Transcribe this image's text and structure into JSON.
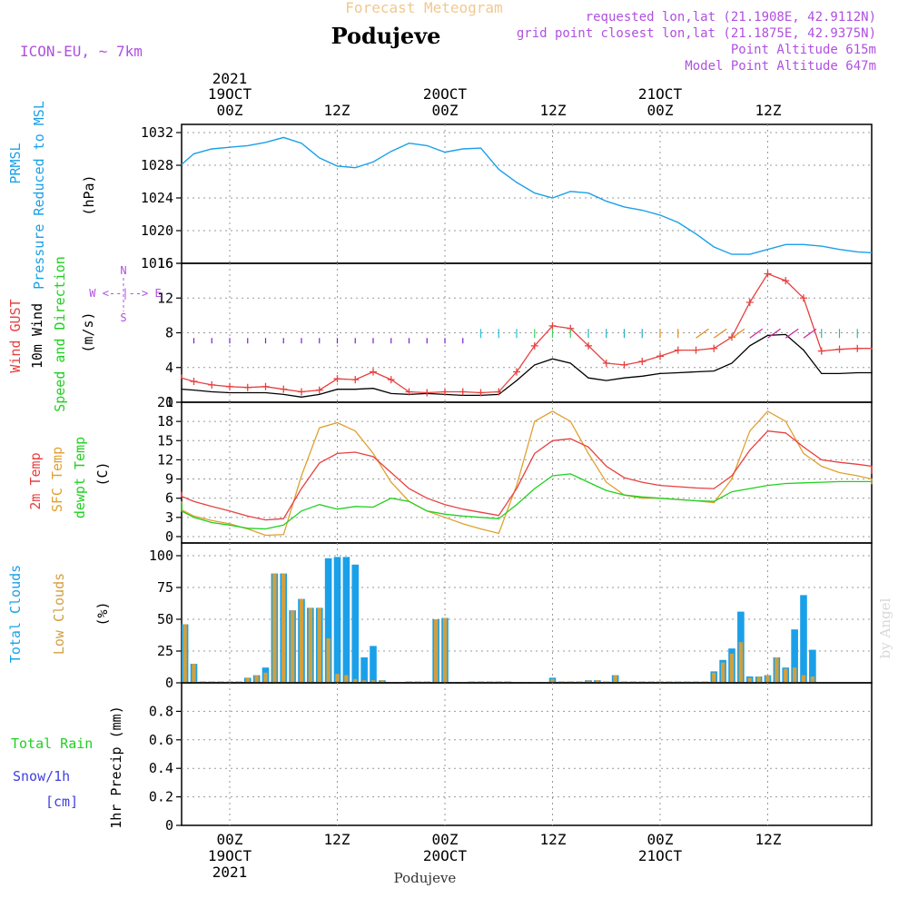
{
  "header": {
    "super_title": "Forecast Meteogram",
    "location": "Podujeve",
    "model": "ICON-EU, ~ 7km",
    "requested": "requested lon,lat (21.1908E, 42.9112N)",
    "grid_point": "grid point closest lon,lat (21.1875E, 42.9375N)",
    "point_altitude": "Point Altitude 615m",
    "model_altitude": "Model Point Altitude 647m"
  },
  "time_axis": {
    "top_year": "2021",
    "top_dates": [
      "19OCT",
      "20OCT",
      "21OCT"
    ],
    "top_hours": [
      "00Z",
      "12Z",
      "00Z",
      "12Z",
      "00Z",
      "12Z"
    ],
    "bottom_hours": [
      "00Z",
      "12Z",
      "00Z",
      "12Z",
      "00Z",
      "12Z"
    ],
    "bottom_dates": [
      "19OCT",
      "20OCT",
      "21OCT"
    ],
    "bottom_year": "2021",
    "footer": "Podujeve",
    "watermark": "by Angel"
  },
  "colors": {
    "pressure": "#1aa0e8",
    "gust": "#e84040",
    "wind10m": "#000000",
    "temp2m": "#e84040",
    "sfc_temp": "#e0a030",
    "dewpoint": "#20d020",
    "total_clouds": "#1aa0e8",
    "low_clouds": "#d0a040",
    "rain": "#20d020",
    "snow": "#4040e0",
    "header_orange": "#f0c890",
    "header_purple": "#b050e0"
  },
  "panels": {
    "pressure": {
      "label1": "PRMSL",
      "label2": "Pressure Reduced to MSL",
      "unit": "(hPa)"
    },
    "wind": {
      "label_gust": "Wind GUST",
      "label_wind": "10m Wind",
      "label_dir": "Speed and Direction",
      "unit": "(m/s)",
      "compass_n": "N",
      "compass_s": "S",
      "compass_line": "W <--|--> E"
    },
    "temp": {
      "label_t2m": "2m Temp",
      "label_sfc": "SFC Temp",
      "label_dew": "dewpt Temp",
      "unit": "(C)"
    },
    "clouds": {
      "label_total": "Total Clouds",
      "label_low": "Low Clouds",
      "unit": "(%)"
    },
    "precip": {
      "label_rain": "Total  Rain",
      "label_snow": "Snow/1h",
      "label_snow_unit": "[cm]",
      "ylabel": "1hr Precip (mm)"
    }
  },
  "chart_data": [
    {
      "type": "line",
      "name_key": "pressure",
      "ylim": [
        1016,
        1033
      ],
      "yticks": [
        1016,
        1020,
        1024,
        1028,
        1032
      ],
      "x_hours": [
        -6,
        -4,
        -2,
        0,
        2,
        4,
        6,
        8,
        9,
        10,
        12,
        14,
        16,
        18,
        20,
        22,
        24,
        26,
        28,
        30,
        32,
        34,
        36,
        38,
        40,
        42,
        44,
        46,
        48,
        50,
        52,
        54,
        56,
        58,
        60,
        62,
        64,
        66,
        68,
        70,
        72
      ],
      "series": [
        {
          "values": [
            1028.1,
            1029.4,
            1030.0,
            1030.2,
            1030.4,
            1030.8,
            1031.4,
            1030.7,
            1029.8,
            1028.9,
            1027.9,
            1027.7,
            1028.4,
            1029.7,
            1030.7,
            1030.4,
            1029.6,
            1030.0,
            1030.1,
            1027.5,
            1025.9,
            1024.6,
            1024.0,
            1024.8,
            1024.6,
            1023.6,
            1022.9,
            1022.5,
            1021.9,
            1021.0,
            1019.6,
            1018.0,
            1017.1,
            1017.1,
            1017.7,
            1018.3,
            1018.3,
            1018.1,
            1017.7,
            1017.4,
            1017.3
          ]
        }
      ]
    },
    {
      "type": "line",
      "name_key": "wind",
      "ylim": [
        0,
        16
      ],
      "yticks": [
        0,
        4,
        8,
        12,
        16
      ],
      "x_hours": [
        -8,
        -6,
        -4,
        -2,
        0,
        2,
        4,
        6,
        8,
        10,
        12,
        14,
        16,
        18,
        20,
        22,
        24,
        26,
        28,
        30,
        32,
        34,
        36,
        38,
        40,
        42,
        44,
        46,
        48,
        50,
        52,
        54,
        56,
        58,
        60,
        62,
        64,
        66,
        68,
        70,
        72,
        74,
        76,
        78,
        80
      ],
      "series": [
        {
          "key": "gust",
          "values": [
            3.2,
            2.8,
            2.4,
            2.0,
            1.8,
            1.7,
            1.8,
            1.5,
            1.2,
            1.4,
            2.7,
            2.6,
            3.5,
            2.6,
            1.2,
            1.1,
            1.2,
            1.2,
            1.1,
            1.2,
            3.5,
            6.5,
            8.8,
            8.5,
            6.5,
            4.5,
            4.3,
            4.7,
            5.3,
            6.0,
            6.0,
            6.2,
            7.5,
            11.5,
            14.8,
            14.0,
            12.0,
            5.9,
            6.1,
            6.2,
            6.2,
            6.1,
            6.2,
            6.1,
            6.1
          ],
          "visible_count": 45
        },
        {
          "key": "wind10m",
          "values": [
            1.6,
            1.5,
            1.4,
            1.2,
            1.1,
            1.1,
            1.1,
            0.9,
            0.6,
            0.9,
            1.5,
            1.5,
            1.6,
            1.0,
            0.9,
            1.0,
            0.9,
            0.8,
            0.8,
            0.9,
            2.5,
            4.3,
            5.0,
            4.5,
            2.8,
            2.5,
            2.8,
            3.0,
            3.3,
            3.4,
            3.5,
            3.6,
            4.5,
            6.5,
            7.7,
            7.8,
            6.0,
            3.3,
            3.3,
            3.4,
            3.4,
            3.3,
            3.4,
            3.4,
            3.3
          ]
        }
      ]
    },
    {
      "type": "line",
      "name_key": "temp",
      "ylim": [
        -1,
        21
      ],
      "yticks": [
        0,
        3,
        6,
        9,
        12,
        15,
        18,
        21
      ],
      "x_hours": [
        -8,
        -6,
        -4,
        -2,
        0,
        2,
        4,
        6,
        8,
        10,
        12,
        14,
        16,
        18,
        20,
        22,
        24,
        26,
        28,
        30,
        32,
        34,
        36,
        38,
        40,
        42,
        44,
        46,
        48,
        50,
        52,
        54,
        56,
        58,
        60,
        62,
        64,
        66,
        68,
        70,
        72,
        74,
        76,
        78,
        80
      ],
      "series": [
        {
          "key": "temp2m",
          "values": [
            7.0,
            6.3,
            5.5,
            4.7,
            4.0,
            3.2,
            2.6,
            2.8,
            7.5,
            11.5,
            13.0,
            13.2,
            12.5,
            10.0,
            7.5,
            6.0,
            5.0,
            4.3,
            3.8,
            3.3,
            7.5,
            13.0,
            15.0,
            15.3,
            14.0,
            11.0,
            9.2,
            8.5,
            8.0,
            7.8,
            7.6,
            7.5,
            9.5,
            13.5,
            16.5,
            16.2,
            14.0,
            12.0,
            11.6,
            11.3,
            11.0,
            10.6,
            10.2,
            10.0,
            9.8
          ]
        },
        {
          "key": "sfc_temp",
          "values": [
            5.5,
            4.2,
            3.2,
            2.5,
            2.0,
            1.2,
            0.2,
            0.3,
            9.5,
            17.0,
            17.8,
            16.5,
            13.0,
            8.5,
            5.5,
            4.0,
            3.0,
            2.0,
            1.2,
            0.5,
            8.0,
            18.0,
            19.6,
            18.0,
            13.0,
            8.5,
            6.5,
            6.0,
            6.0,
            5.8,
            5.6,
            5.3,
            9.0,
            16.5,
            19.6,
            18.0,
            13.0,
            11.0,
            10.0,
            9.5,
            9.0,
            8.8,
            8.6,
            8.4,
            8.2
          ]
        },
        {
          "key": "dewpoint",
          "values": [
            5.2,
            4.0,
            3.0,
            2.2,
            1.8,
            1.3,
            1.2,
            1.8,
            4.0,
            5.0,
            4.3,
            4.7,
            4.6,
            6.0,
            5.5,
            4.0,
            3.5,
            3.2,
            3.0,
            2.8,
            5.0,
            7.5,
            9.5,
            9.8,
            8.5,
            7.2,
            6.5,
            6.2,
            6.0,
            5.8,
            5.6,
            5.5,
            7.0,
            7.5,
            8.0,
            8.3,
            8.4,
            8.5,
            8.6,
            8.6,
            8.6,
            8.7,
            8.7,
            8.7,
            8.7
          ]
        }
      ]
    },
    {
      "type": "bar",
      "name_key": "clouds",
      "ylim": [
        0,
        110
      ],
      "yticks": [
        0,
        25,
        50,
        75,
        100
      ],
      "x_hours": [
        -11,
        -10,
        -9,
        -8,
        -7,
        -6,
        -5,
        -4,
        -3,
        -2,
        -1,
        0,
        1,
        2,
        3,
        4,
        5,
        6,
        7,
        8,
        9,
        10,
        11,
        12,
        13,
        14,
        15,
        16,
        17,
        18,
        19,
        20,
        21,
        22,
        23,
        24,
        25,
        26,
        27,
        28,
        29,
        30,
        31,
        32,
        33,
        34,
        35,
        36,
        37,
        38,
        39,
        40,
        41,
        42,
        43,
        44,
        45,
        46,
        47,
        48,
        49,
        50,
        51,
        52,
        53,
        54,
        55,
        56,
        57,
        58,
        59,
        60,
        61,
        62,
        63,
        64,
        65
      ],
      "series": [
        {
          "key": "total_clouds",
          "values": [
            45,
            60,
            51,
            39,
            32,
            45,
            46,
            15,
            1,
            1,
            1,
            1,
            1,
            4,
            6,
            12,
            86,
            86,
            57,
            66,
            59,
            59,
            98,
            99,
            99,
            93,
            20,
            29,
            2,
            0,
            0,
            1,
            1,
            1,
            50,
            51,
            0,
            0,
            1,
            1,
            1,
            1,
            1,
            0,
            0,
            0,
            0,
            4,
            1,
            1,
            1,
            2,
            2,
            1,
            6,
            1,
            1,
            1,
            1,
            1,
            1,
            1,
            1,
            1,
            1,
            9,
            18,
            27,
            56,
            5,
            5,
            6,
            20,
            12,
            42,
            69,
            26
          ]
        },
        {
          "key": "low_clouds",
          "values": [
            45,
            60,
            51,
            39,
            32,
            45,
            46,
            15,
            1,
            1,
            1,
            1,
            1,
            4,
            6,
            8,
            86,
            86,
            57,
            66,
            59,
            59,
            35,
            7,
            6,
            3,
            2,
            2,
            2,
            0,
            0,
            1,
            1,
            1,
            50,
            51,
            0,
            0,
            1,
            1,
            1,
            1,
            1,
            0,
            0,
            0,
            0,
            3,
            1,
            1,
            1,
            2,
            2,
            1,
            6,
            1,
            1,
            1,
            1,
            1,
            1,
            1,
            1,
            1,
            1,
            8,
            16,
            23,
            32,
            4,
            5,
            6,
            20,
            11,
            12,
            6,
            5
          ]
        }
      ]
    },
    {
      "type": "bar",
      "name_key": "precip",
      "ylim": [
        0,
        1.0
      ],
      "yticks": [
        0,
        0.2,
        0.4,
        0.6,
        0.8
      ],
      "series": [
        {
          "key": "rain",
          "values": []
        }
      ]
    }
  ]
}
